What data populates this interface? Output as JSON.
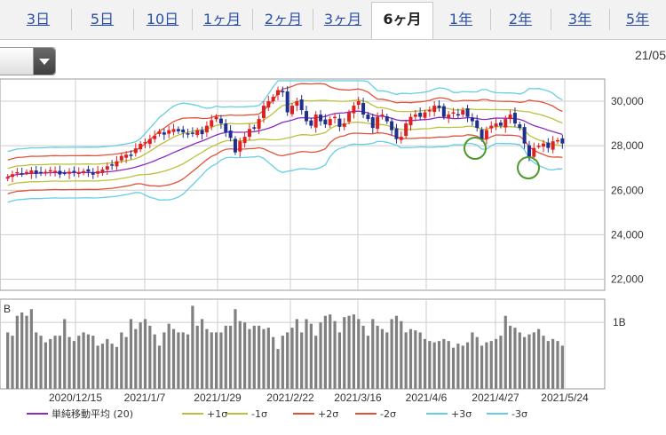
{
  "tabs": [
    {
      "label": "3日",
      "active": false
    },
    {
      "label": "5日",
      "active": false
    },
    {
      "label": "10日",
      "active": false
    },
    {
      "label": "1ヶ月",
      "active": false
    },
    {
      "label": "2ヶ月",
      "active": false
    },
    {
      "label": "3ヶ月",
      "active": false
    },
    {
      "label": "6ヶ月",
      "active": true
    },
    {
      "label": "1年",
      "active": false
    },
    {
      "label": "2年",
      "active": false
    },
    {
      "label": "3年",
      "active": false
    },
    {
      "label": "5年",
      "active": false
    }
  ],
  "header": {
    "date_stamp": "21/05",
    "selector_value": ""
  },
  "colors": {
    "candle_up": "#e02020",
    "candle_down": "#1f2f8f",
    "ma": "#8b2bbf",
    "sigma1": "#b9c23a",
    "sigma2": "#e0533a",
    "sigma3": "#63cfe3",
    "volume": "#808080",
    "marker": "#4c9a2a"
  },
  "chart_data": {
    "type": "candlestick",
    "price_axis": {
      "ticks": [
        "22,000",
        "24,000",
        "26,000",
        "28,000",
        "30,000"
      ],
      "range": [
        21500,
        31000
      ]
    },
    "volume_axis": {
      "ticks": [
        "1B"
      ],
      "unit": "B",
      "partial_label": "B"
    },
    "x_tick_labels": [
      "2020/12/15",
      "2021/1/7",
      "2021/1/29",
      "2021/2/22",
      "2021/3/16",
      "2021/4/6",
      "2021/4/27",
      "2021/5/24"
    ],
    "series_close": [
      26600,
      26720,
      26810,
      26760,
      26820,
      26890,
      26740,
      26800,
      26830,
      26900,
      26870,
      26710,
      26780,
      26830,
      26820,
      26790,
      26860,
      26840,
      26700,
      26850,
      26930,
      27080,
      27110,
      27300,
      27540,
      27600,
      27590,
      27880,
      28090,
      28160,
      28300,
      28450,
      28640,
      28500,
      28700,
      28750,
      28650,
      28600,
      28550,
      28560,
      28700,
      28520,
      28900,
      29150,
      29300,
      29000,
      28600,
      28350,
      27700,
      28200,
      28400,
      28750,
      28800,
      29200,
      29800,
      30000,
      30200,
      30500,
      30400,
      29500,
      29800,
      30000,
      29600,
      29100,
      28900,
      29400,
      29100,
      28960,
      29200,
      29300,
      28850,
      29000,
      29500,
      29800,
      30000,
      29400,
      29200,
      28800,
      29300,
      29400,
      29100,
      28700,
      28300,
      28400,
      29000,
      29300,
      29400,
      29300,
      29500,
      29600,
      29800,
      29700,
      29300,
      29400,
      29500,
      29400,
      29600,
      29300,
      29100,
      28800,
      28300,
      28700,
      28900,
      29000,
      28900,
      29200,
      29400,
      29000,
      28800,
      28100,
      27500,
      27900,
      28000,
      28100,
      27900,
      28200,
      28250,
      28100
    ],
    "volume": [
      0.85,
      0.8,
      1.1,
      1.15,
      1.1,
      1.2,
      0.85,
      0.8,
      0.7,
      0.75,
      0.8,
      0.8,
      1.05,
      0.78,
      0.72,
      0.8,
      0.85,
      0.82,
      0.8,
      0.65,
      0.68,
      0.75,
      0.68,
      0.63,
      0.85,
      0.78,
      1.05,
      0.9,
      1.0,
      1.05,
      0.95,
      0.82,
      0.65,
      0.85,
      0.98,
      0.9,
      0.85,
      0.85,
      0.82,
      1.25,
      0.95,
      1.05,
      0.9,
      0.85,
      0.85,
      0.85,
      0.95,
      0.95,
      1.2,
      1.02,
      1.0,
      0.9,
      0.95,
      0.95,
      0.9,
      0.92,
      0.78,
      0.6,
      0.8,
      0.85,
      0.92,
      1.05,
      0.85,
      1.05,
      0.98,
      0.8,
      1.0,
      1.1,
      1.12,
      1.02,
      0.85,
      1.08,
      1.1,
      1.12,
      1.05,
      0.95,
      0.8,
      1.05,
      0.95,
      0.9,
      0.85,
      1.05,
      1.1,
      1.02,
      0.85,
      0.9,
      0.88,
      0.85,
      0.75,
      0.72,
      0.7,
      0.72,
      0.75,
      0.72,
      0.62,
      0.68,
      0.65,
      0.7,
      0.85,
      0.78,
      0.65,
      0.7,
      0.72,
      0.75,
      0.8,
      1.1,
      0.95,
      0.92,
      0.85,
      0.78,
      0.82,
      0.85,
      0.9,
      0.8,
      0.72,
      0.75,
      0.72,
      0.65
    ],
    "legend": [
      {
        "key": "ma",
        "label": "単純移動平均 (20)",
        "color": "#8b2bbf"
      },
      {
        "key": "p1",
        "label": "+1σ",
        "color": "#b9c23a"
      },
      {
        "key": "m1",
        "label": "-1σ",
        "color": "#b9c23a"
      },
      {
        "key": "p2",
        "label": "+2σ",
        "color": "#e0533a"
      },
      {
        "key": "m2",
        "label": "-2σ",
        "color": "#e0533a"
      },
      {
        "key": "p3",
        "label": "+3σ",
        "color": "#63cfe3"
      },
      {
        "key": "m3",
        "label": "-3σ",
        "color": "#63cfe3"
      }
    ]
  }
}
